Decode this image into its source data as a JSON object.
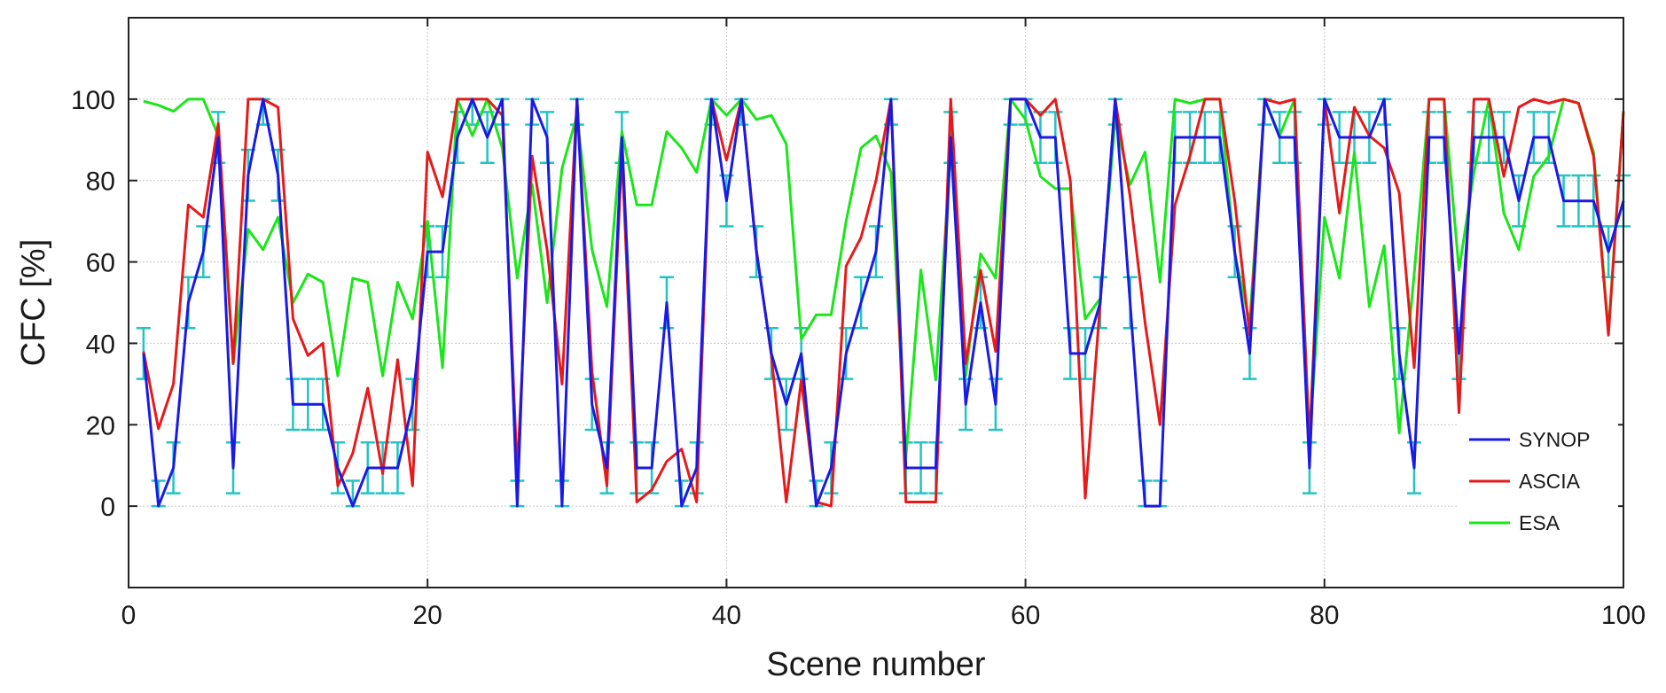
{
  "chart_data": {
    "type": "line",
    "xlabel": "Scene number",
    "ylabel": "CFC [%]",
    "xlim": [
      0,
      100
    ],
    "ylim": [
      -20,
      120
    ],
    "xticks": [
      0,
      20,
      40,
      60,
      80,
      100
    ],
    "yticks": [
      0,
      20,
      40,
      60,
      80,
      100
    ],
    "grid": true,
    "legend_position": "bottom-right",
    "x": [
      1,
      2,
      3,
      4,
      5,
      6,
      7,
      8,
      9,
      10,
      11,
      12,
      13,
      14,
      15,
      16,
      17,
      18,
      19,
      20,
      21,
      22,
      23,
      24,
      25,
      26,
      27,
      28,
      29,
      30,
      31,
      32,
      33,
      34,
      35,
      36,
      37,
      38,
      39,
      40,
      41,
      42,
      43,
      44,
      45,
      46,
      47,
      48,
      49,
      50,
      51,
      52,
      53,
      54,
      55,
      56,
      57,
      58,
      59,
      60,
      61,
      62,
      63,
      64,
      65,
      66,
      67,
      68,
      69,
      70,
      71,
      72,
      73,
      74,
      75,
      76,
      77,
      78,
      79,
      80,
      81,
      82,
      83,
      84,
      85,
      86,
      87,
      88,
      89,
      90,
      91,
      92,
      93,
      94,
      95,
      96,
      97,
      98,
      99,
      100
    ],
    "series": [
      {
        "name": "SYNOP",
        "color": "#1a1ae6",
        "values": [
          37.5,
          0,
          9.4,
          50,
          62.5,
          90.6,
          9.4,
          81.3,
          100,
          81.3,
          25,
          25,
          25,
          9.4,
          0,
          9.4,
          9.4,
          9.4,
          25,
          62.5,
          62.5,
          90.6,
          100,
          90.6,
          100,
          0,
          100,
          90.6,
          0,
          100,
          25,
          9.4,
          90.6,
          9.4,
          9.4,
          50,
          0,
          9.4,
          100,
          75,
          100,
          62.5,
          37.5,
          25,
          37.5,
          0,
          9.4,
          37.5,
          50,
          62.5,
          100,
          9.4,
          9.4,
          9.4,
          90.6,
          25,
          50,
          25,
          100,
          100,
          90.6,
          90.6,
          37.5,
          37.5,
          50,
          100,
          50,
          0,
          0,
          90.6,
          90.6,
          90.6,
          90.6,
          62.5,
          37.5,
          100,
          90.6,
          90.6,
          9.4,
          100,
          90.6,
          90.6,
          90.6,
          100,
          37.5,
          9.4,
          90.6,
          90.6,
          37.5,
          90.6,
          90.6,
          90.6,
          75,
          90.6,
          90.6,
          75,
          75,
          75,
          62.5,
          75
        ]
      },
      {
        "name": "ASCIA",
        "color": "#e61a1a",
        "values": [
          38,
          19,
          30,
          74,
          71,
          94,
          35,
          100,
          100,
          98,
          46,
          37,
          40,
          5,
          13,
          29,
          8,
          36,
          5,
          87,
          76,
          100,
          100,
          100,
          96,
          8,
          86,
          63,
          30,
          100,
          33,
          5,
          87,
          1,
          4,
          11,
          14,
          1,
          100,
          85,
          100,
          63,
          37,
          1,
          31,
          1,
          0,
          59,
          66,
          80,
          100,
          1,
          1,
          1,
          100,
          35,
          58,
          38,
          100,
          100,
          96,
          100,
          80,
          2,
          50,
          100,
          76,
          45,
          20,
          74,
          86,
          100,
          100,
          75,
          42,
          100,
          99,
          100,
          15,
          100,
          72,
          98,
          91,
          88,
          77,
          34,
          100,
          100,
          23,
          100,
          100,
          81,
          98,
          100,
          99,
          100,
          99,
          86,
          42,
          97
        ]
      },
      {
        "name": "ESA",
        "color": "#1ae61a",
        "values": [
          99.5,
          98.5,
          97,
          100,
          100,
          91,
          35,
          68,
          63,
          71,
          50,
          57,
          55,
          32,
          56,
          55,
          32,
          55,
          46,
          70,
          34,
          100,
          91,
          100,
          88,
          56,
          79,
          50,
          83,
          96,
          63,
          49,
          92,
          74,
          74,
          92,
          88,
          82,
          100,
          96,
          100,
          95,
          96,
          89,
          41,
          47,
          47,
          70,
          88,
          91,
          82,
          12,
          58,
          31,
          88,
          32,
          62,
          56,
          100,
          95,
          81,
          78,
          78,
          46,
          51,
          95,
          79,
          87,
          55,
          100,
          99,
          100,
          100,
          62,
          45,
          100,
          91,
          100,
          16,
          71,
          56,
          87,
          49,
          64,
          18,
          57,
          100,
          100,
          58,
          82,
          100,
          72,
          63,
          81,
          86,
          100,
          99,
          87,
          43,
          97
        ]
      }
    ],
    "error_bars": {
      "color": "#22c4c4",
      "x": [
        1,
        2,
        3,
        4,
        5,
        6,
        7,
        8,
        9,
        10,
        11,
        12,
        13,
        14,
        15,
        16,
        17,
        18,
        19,
        20,
        21,
        22,
        23,
        24,
        25,
        26,
        27,
        28,
        29,
        30,
        31,
        32,
        33,
        34,
        35,
        36,
        37,
        38,
        39,
        40,
        41,
        42,
        43,
        44,
        45,
        46,
        47,
        48,
        49,
        50,
        51,
        52,
        53,
        54,
        55,
        56,
        57,
        58,
        59,
        60,
        61,
        62,
        63,
        64,
        65,
        66,
        67,
        68,
        69,
        70,
        71,
        72,
        73,
        74,
        75,
        76,
        77,
        78,
        79,
        80,
        81,
        82,
        83,
        84,
        85,
        86,
        87,
        88,
        89,
        90,
        91,
        92,
        93,
        94,
        95,
        96,
        97,
        98,
        99,
        100
      ],
      "center": [
        37.5,
        0,
        9.4,
        50,
        62.5,
        90.6,
        9.4,
        81.3,
        100,
        81.3,
        25,
        25,
        25,
        9.4,
        0,
        9.4,
        9.4,
        9.4,
        25,
        62.5,
        62.5,
        90.6,
        100,
        90.6,
        100,
        0,
        100,
        90.6,
        0,
        100,
        25,
        9.4,
        90.6,
        9.4,
        9.4,
        50,
        0,
        9.4,
        100,
        75,
        100,
        62.5,
        37.5,
        25,
        37.5,
        0,
        9.4,
        37.5,
        50,
        62.5,
        100,
        9.4,
        9.4,
        9.4,
        90.6,
        25,
        50,
        25,
        100,
        100,
        90.6,
        90.6,
        37.5,
        37.5,
        50,
        100,
        50,
        0,
        0,
        90.6,
        90.6,
        90.6,
        90.6,
        62.5,
        37.5,
        100,
        90.6,
        90.6,
        9.4,
        100,
        90.6,
        90.6,
        90.6,
        100,
        37.5,
        9.4,
        90.6,
        90.6,
        37.5,
        90.6,
        90.6,
        90.6,
        75,
        90.6,
        90.6,
        75,
        75,
        75,
        62.5,
        75
      ],
      "half_width": 6.25
    }
  }
}
